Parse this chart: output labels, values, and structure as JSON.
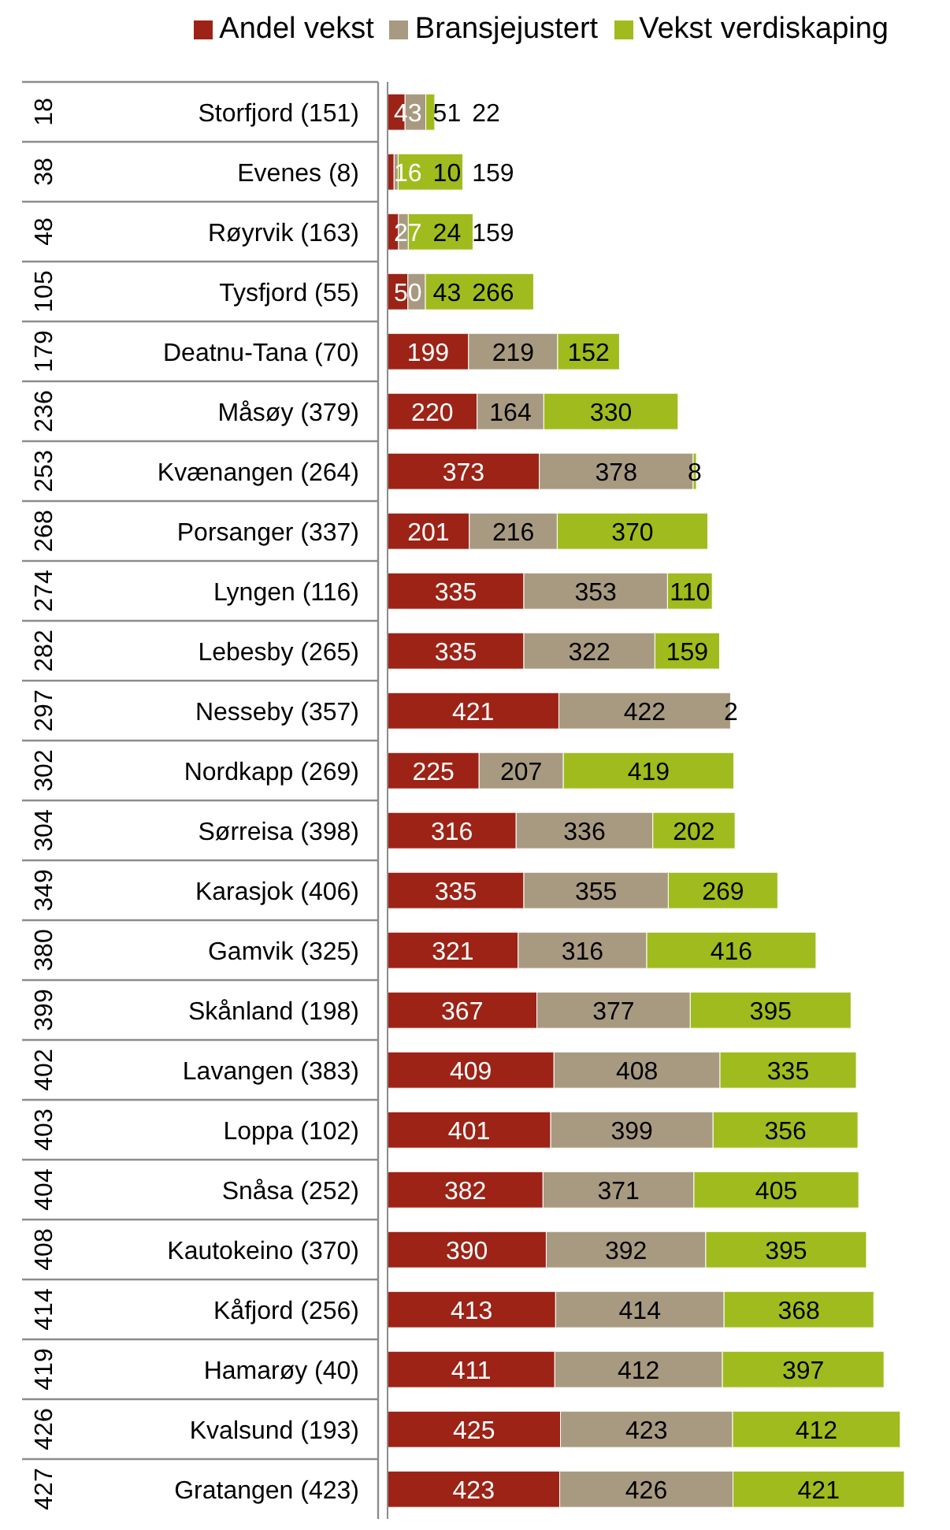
{
  "chart_data": {
    "type": "bar",
    "orientation": "horizontal",
    "stacked": true,
    "data_labels": true,
    "legend": "top",
    "categories": [
      "Storfjord (151)",
      "Evenes (8)",
      "Røyrvik (163)",
      "Tysfjord (55)",
      "Deatnu-Tana (70)",
      "Måsøy (379)",
      "Kvænangen (264)",
      "Porsanger (337)",
      "Lyngen (116)",
      "Lebesby (265)",
      "Nesseby (357)",
      "Nordkapp (269)",
      "Sørreisa (398)",
      "Karasjok (406)",
      "Gamvik (325)",
      "Skånland (198)",
      "Lavangen (383)",
      "Loppa (102)",
      "Snåsa (252)",
      "Kautokeino (370)",
      "Kåfjord (256)",
      "Hamarøy (40)",
      "Kvalsund (193)",
      "Gratangen (423)"
    ],
    "annotations": [
      "18",
      "38",
      "48",
      "105",
      "179",
      "236",
      "253",
      "268",
      "274",
      "282",
      "297",
      "302",
      "304",
      "349",
      "380",
      "399",
      "402",
      "403",
      "404",
      "408",
      "414",
      "419",
      "426",
      "427"
    ],
    "series": [
      {
        "name": "Andel vekst",
        "color": "#9c2316",
        "values": [
          43,
          16,
          27,
          50,
          199,
          220,
          373,
          201,
          335,
          335,
          421,
          225,
          316,
          335,
          321,
          367,
          409,
          401,
          382,
          390,
          413,
          411,
          425,
          423
        ]
      },
      {
        "name": "Bransjejustert",
        "color": "#a89a80",
        "values": [
          51,
          10,
          24,
          43,
          219,
          164,
          378,
          216,
          353,
          322,
          422,
          207,
          336,
          355,
          316,
          377,
          408,
          399,
          371,
          392,
          414,
          412,
          423,
          426
        ]
      },
      {
        "name": "Vekst verdiskaping",
        "color": "#a0bb1e",
        "values": [
          22,
          159,
          159,
          266,
          152,
          330,
          8,
          370,
          110,
          159,
          2,
          419,
          202,
          269,
          416,
          395,
          335,
          356,
          405,
          395,
          368,
          397,
          412,
          421
        ]
      }
    ]
  }
}
